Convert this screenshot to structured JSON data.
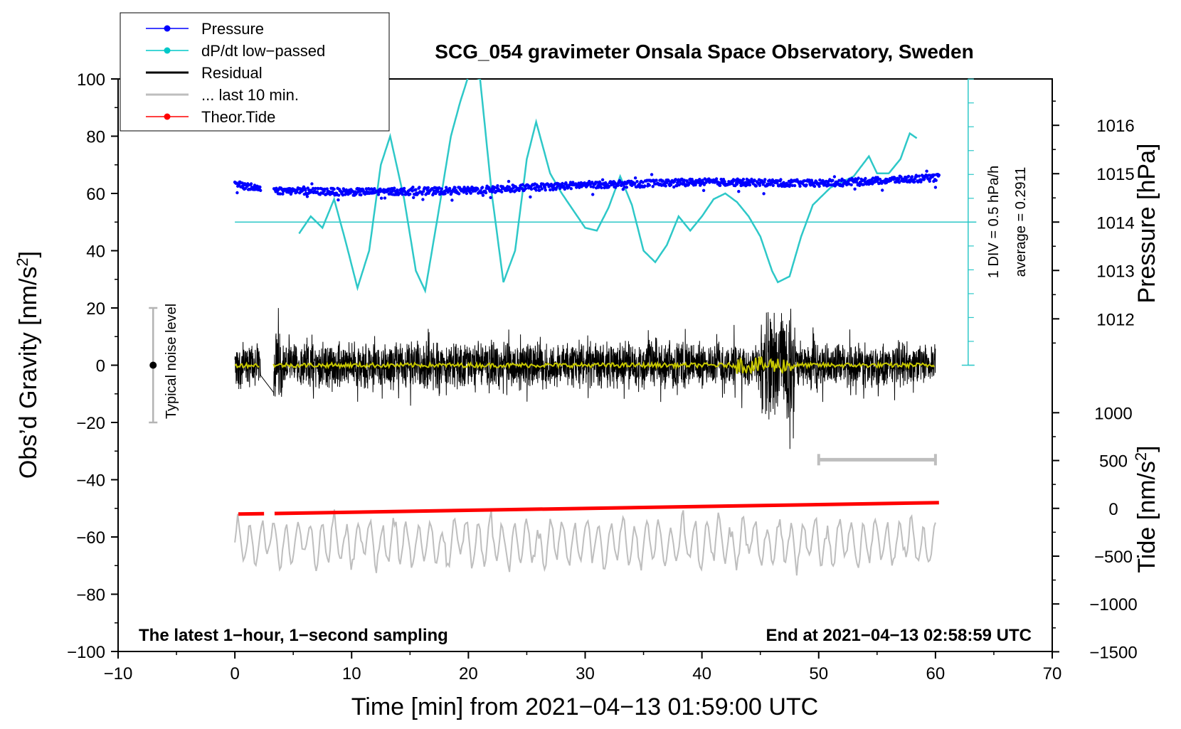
{
  "chart_data": {
    "type": "line",
    "title": "SCG_054 gravimeter Onsala Space Observatory, Sweden",
    "xlabel": "Time [min] from 2021−04−13 01:59:00 UTC",
    "ylabel_left": "Obs’d Gravity [nm/s²]",
    "ylabel_left_main": "Obs’d Gravity [nm/s",
    "ylabel_right_pressure": "Pressure [hPa]",
    "ylabel_right_tide": "Tide [nm/s²]",
    "ylabel_right_tide_main": "Tide [nm/s",
    "superscript": "2",
    "xlim": [
      -10,
      70
    ],
    "ylim_left": [
      -100,
      100
    ],
    "x_ticks": [
      "−10",
      "0",
      "10",
      "20",
      "30",
      "40",
      "50",
      "60",
      "70"
    ],
    "y_left_ticks": [
      "100",
      "80",
      "60",
      "40",
      "20",
      "0",
      "−20",
      "−40",
      "−60",
      "−80",
      "−100"
    ],
    "pressure_ticks": [
      "1016",
      "1015",
      "1014",
      "1013",
      "1012"
    ],
    "tide_ticks": [
      "1000",
      "500",
      "0",
      "−500",
      "−1000",
      "−1500"
    ],
    "bottom_left_note": "The latest 1−hour, 1−second sampling",
    "bottom_right_note": "End at 2021−04−13 02:58:59 UTC",
    "noise_label": "Typical noise level",
    "dpdt_scale_label": "1 DIV = 0.5 hPa/h",
    "dpdt_average_label": "average = 0.2911",
    "legend": [
      {
        "label": "Pressure",
        "color": "#0000ff",
        "marker": true
      },
      {
        "label": "dP/dt low−passed",
        "color": "#00c8c8",
        "marker": true
      },
      {
        "label": "Residual",
        "color": "#000000",
        "marker": false
      },
      {
        "label": "... last 10 min.",
        "color": "#bebebe",
        "marker": false
      },
      {
        "label": "Theor.Tide",
        "color": "#ff0000",
        "marker": true
      }
    ],
    "colors": {
      "pressure": "#0000ff",
      "dpdt": "#2ec8c8",
      "residual": "#000000",
      "residual_smooth": "#c8c800",
      "last10": "#bebebe",
      "tide": "#ff0000",
      "noise_bar": "#b4b4b4"
    },
    "noise_bar": {
      "x": -7,
      "y_center": 0,
      "half_range": 20
    },
    "last10_bar": {
      "x_range": [
        50,
        60
      ],
      "y": -33
    },
    "dpdt_zero_y": 50,
    "series": [
      {
        "name": "Pressure",
        "plotted_y": [
          [
            0,
            63
          ],
          [
            2,
            62
          ],
          [
            3.5,
            61
          ],
          [
            10,
            60.5
          ],
          [
            20,
            61
          ],
          [
            30,
            63
          ],
          [
            40,
            64
          ],
          [
            50,
            63.5
          ],
          [
            60.3,
            65.5
          ]
        ]
      },
      {
        "name": "dP/dt low-passed",
        "plotted_y": [
          [
            5.5,
            46
          ],
          [
            6.5,
            52
          ],
          [
            7.5,
            48
          ],
          [
            8.5,
            58
          ],
          [
            9.5,
            43
          ],
          [
            10.5,
            27
          ],
          [
            11.5,
            40
          ],
          [
            12.5,
            70
          ],
          [
            13.3,
            80
          ],
          [
            14.5,
            58
          ],
          [
            15.5,
            33
          ],
          [
            16.3,
            26
          ],
          [
            17.5,
            55
          ],
          [
            18.5,
            80
          ],
          [
            19.3,
            92
          ],
          [
            20,
            101
          ],
          [
            21,
            100
          ],
          [
            22,
            60
          ],
          [
            23,
            29
          ],
          [
            24,
            40
          ],
          [
            25,
            72
          ],
          [
            25.8,
            85
          ],
          [
            27,
            67
          ],
          [
            28,
            60
          ],
          [
            29,
            54
          ],
          [
            30,
            48
          ],
          [
            31,
            47
          ],
          [
            32,
            55
          ],
          [
            33,
            66
          ],
          [
            34,
            56
          ],
          [
            35,
            40
          ],
          [
            36,
            36
          ],
          [
            37,
            42
          ],
          [
            38,
            52
          ],
          [
            39,
            47
          ],
          [
            40,
            52
          ],
          [
            41,
            58
          ],
          [
            42,
            60
          ],
          [
            43,
            57
          ],
          [
            44,
            52
          ],
          [
            45,
            45
          ],
          [
            46,
            33
          ],
          [
            46.5,
            29
          ],
          [
            47.5,
            31
          ],
          [
            48.5,
            45
          ],
          [
            49.5,
            56
          ],
          [
            51,
            62
          ],
          [
            52,
            64
          ],
          [
            53,
            66
          ],
          [
            54.3,
            73
          ],
          [
            55,
            67
          ],
          [
            56,
            67
          ],
          [
            57,
            72
          ],
          [
            57.8,
            81
          ],
          [
            58.5,
            79
          ]
        ]
      },
      {
        "name": "Theor.Tide",
        "plotted_y": [
          [
            0.3,
            -52
          ],
          [
            60.3,
            -48
          ]
        ]
      }
    ]
  }
}
